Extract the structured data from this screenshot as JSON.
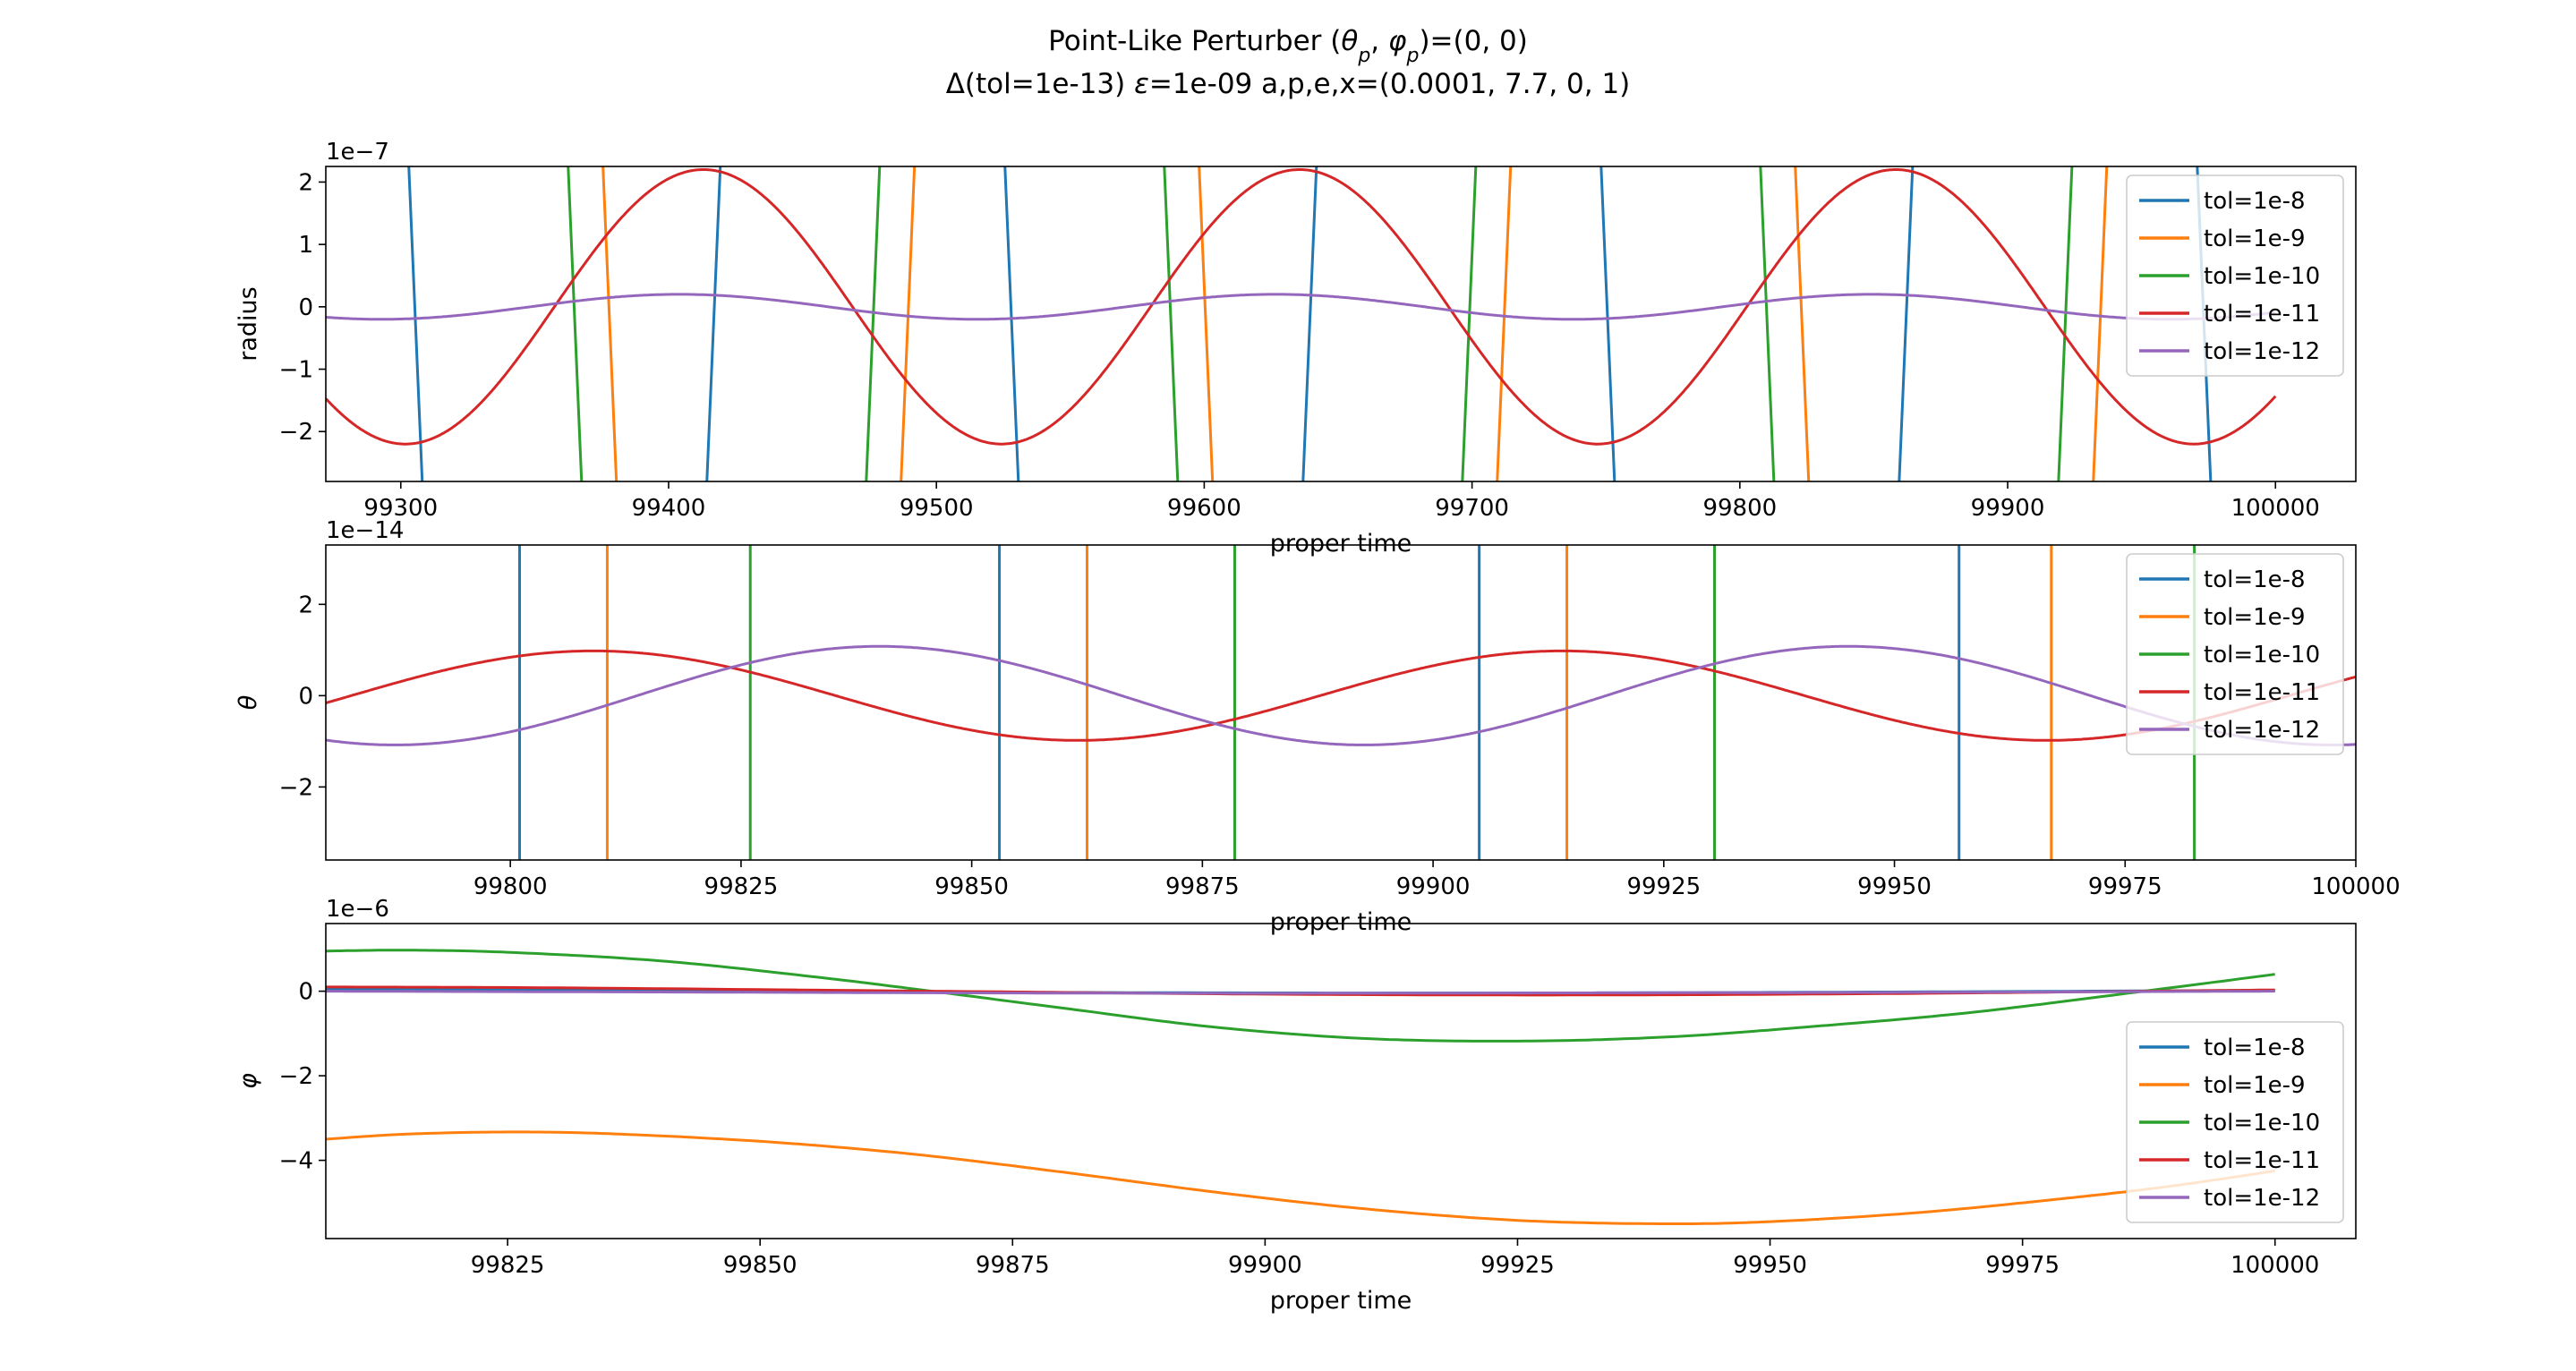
{
  "figure": {
    "title_line1": "Point-Like Perturber (θ_p, φ_p)=(0, 0)",
    "title_line2": "Δ(tol=1e-13) ε=1e-09 a,p,e,x=(0.0001, 7.7, 0, 1)"
  },
  "colors": {
    "tol=1e-8": "#1f77b4",
    "tol=1e-9": "#ff7f0e",
    "tol=1e-10": "#2ca02c",
    "tol=1e-11": "#d62728",
    "tol=1e-12": "#9467bd"
  },
  "chart_data": [
    {
      "type": "line",
      "ylabel": "radius",
      "xlabel": "proper time",
      "offset_text": "1e−7",
      "xlim": [
        99272,
        100030
      ],
      "ylim": [
        -2.8,
        2.25
      ],
      "xticks": [
        99300,
        99400,
        99500,
        99600,
        99700,
        99800,
        99900,
        100000
      ],
      "yticks": [
        -2,
        -1,
        0,
        1,
        2
      ],
      "ytick_labels": [
        "−2",
        "−1",
        "0",
        "1",
        "2"
      ],
      "legend_loc": "upper-right",
      "series": [
        {
          "name": "tol=1e-8",
          "kind": "sawtooth",
          "amp": 230.0,
          "phase_x": 99305.5,
          "period": 222.6,
          "direction": "down_then_up_steep"
        },
        {
          "name": "tol=1e-9",
          "kind": "sawtooth",
          "amp": 230.0,
          "phase_x": 99378,
          "period": 222.6
        },
        {
          "name": "tol=1e-10",
          "kind": "sawtooth",
          "amp": 230.0,
          "phase_x": 99365,
          "period": 222.6
        },
        {
          "name": "tol=1e-11",
          "kind": "sine",
          "amp": 2.2,
          "period": 222.6,
          "peak_x": 99413,
          "x_end": 100000
        },
        {
          "name": "tol=1e-12",
          "kind": "sine",
          "amp": 0.2,
          "period": 222.6,
          "peak_x": 99404,
          "x_end": 100000
        }
      ]
    },
    {
      "type": "line",
      "ylabel": "θ",
      "xlabel": "proper time",
      "offset_text": "1e−14",
      "xlim": [
        99780,
        100000
      ],
      "ylim": [
        -3.6,
        3.3
      ],
      "xticks": [
        99800,
        99825,
        99850,
        99875,
        99900,
        99925,
        99950,
        99975,
        100000
      ],
      "yticks": [
        -2,
        0,
        2
      ],
      "ytick_labels": [
        "−2",
        "0",
        "2"
      ],
      "legend_loc": "upper-right",
      "series": [
        {
          "name": "tol=1e-8",
          "kind": "spikes",
          "x": [
            99801,
            99853,
            99905,
            99957
          ]
        },
        {
          "name": "tol=1e-9",
          "kind": "spikes",
          "x": [
            99810.5,
            99862.5,
            99914.5,
            99967
          ]
        },
        {
          "name": "tol=1e-10",
          "kind": "spikes",
          "x": [
            99826,
            99878.5,
            99930.5,
            99982.5
          ]
        },
        {
          "name": "tol=1e-11",
          "kind": "sine",
          "amp": 0.98,
          "period": 105,
          "peak_x": 99809,
          "x_end": 100000
        },
        {
          "name": "tol=1e-12",
          "kind": "sine",
          "amp": 1.08,
          "period": 105,
          "peak_x": 99840,
          "x_end": 100000
        }
      ]
    },
    {
      "type": "line",
      "ylabel": "φ",
      "xlabel": "proper time",
      "offset_text": "1e−6",
      "xlim": [
        99807,
        100008
      ],
      "ylim": [
        -5.85,
        1.6
      ],
      "xticks": [
        99825,
        99850,
        99875,
        99900,
        99925,
        99950,
        99975,
        100000
      ],
      "yticks": [
        -4,
        -2,
        0
      ],
      "ytick_labels": [
        "−4",
        "−2",
        "0"
      ],
      "legend_loc": "center-right",
      "series": [
        {
          "name": "tol=1e-8",
          "kind": "points",
          "x": [
            99807,
            99840,
            99870,
            99900,
            99930,
            99960,
            100000
          ],
          "y": [
            0.05,
            0.02,
            -0.02,
            -0.04,
            -0.04,
            -0.02,
            0.02
          ]
        },
        {
          "name": "tol=1e-9",
          "kind": "points",
          "x": [
            99807,
            99815,
            99825,
            99835,
            99850,
            99865,
            99880,
            99895,
            99910,
            99925,
            99939,
            99950,
            99965,
            99980,
            99990,
            100000
          ],
          "y": [
            -3.5,
            -3.38,
            -3.33,
            -3.37,
            -3.55,
            -3.85,
            -4.28,
            -4.75,
            -5.15,
            -5.42,
            -5.5,
            -5.45,
            -5.23,
            -4.88,
            -4.6,
            -4.25
          ]
        },
        {
          "name": "tol=1e-10",
          "kind": "points",
          "x": [
            99807,
            99815,
            99825,
            99840,
            99855,
            99867,
            99880,
            99895,
            99910,
            99925,
            99940,
            99955,
            99970,
            99987,
            100000
          ],
          "y": [
            0.95,
            0.97,
            0.92,
            0.72,
            0.35,
            0.0,
            -0.4,
            -0.85,
            -1.12,
            -1.18,
            -1.08,
            -0.82,
            -0.5,
            0.0,
            0.4
          ]
        },
        {
          "name": "tol=1e-11",
          "kind": "points",
          "x": [
            99807,
            99830,
            99867,
            99900,
            99930,
            99960,
            99987,
            100000
          ],
          "y": [
            0.1,
            0.08,
            0.0,
            -0.07,
            -0.09,
            -0.06,
            0.0,
            0.03
          ]
        },
        {
          "name": "tol=1e-12",
          "kind": "points",
          "x": [
            99807,
            99840,
            99870,
            99900,
            99930,
            99960,
            99987,
            100000
          ],
          "y": [
            0.0,
            -0.02,
            -0.04,
            -0.05,
            -0.04,
            -0.03,
            -0.01,
            0.0
          ]
        }
      ]
    }
  ]
}
